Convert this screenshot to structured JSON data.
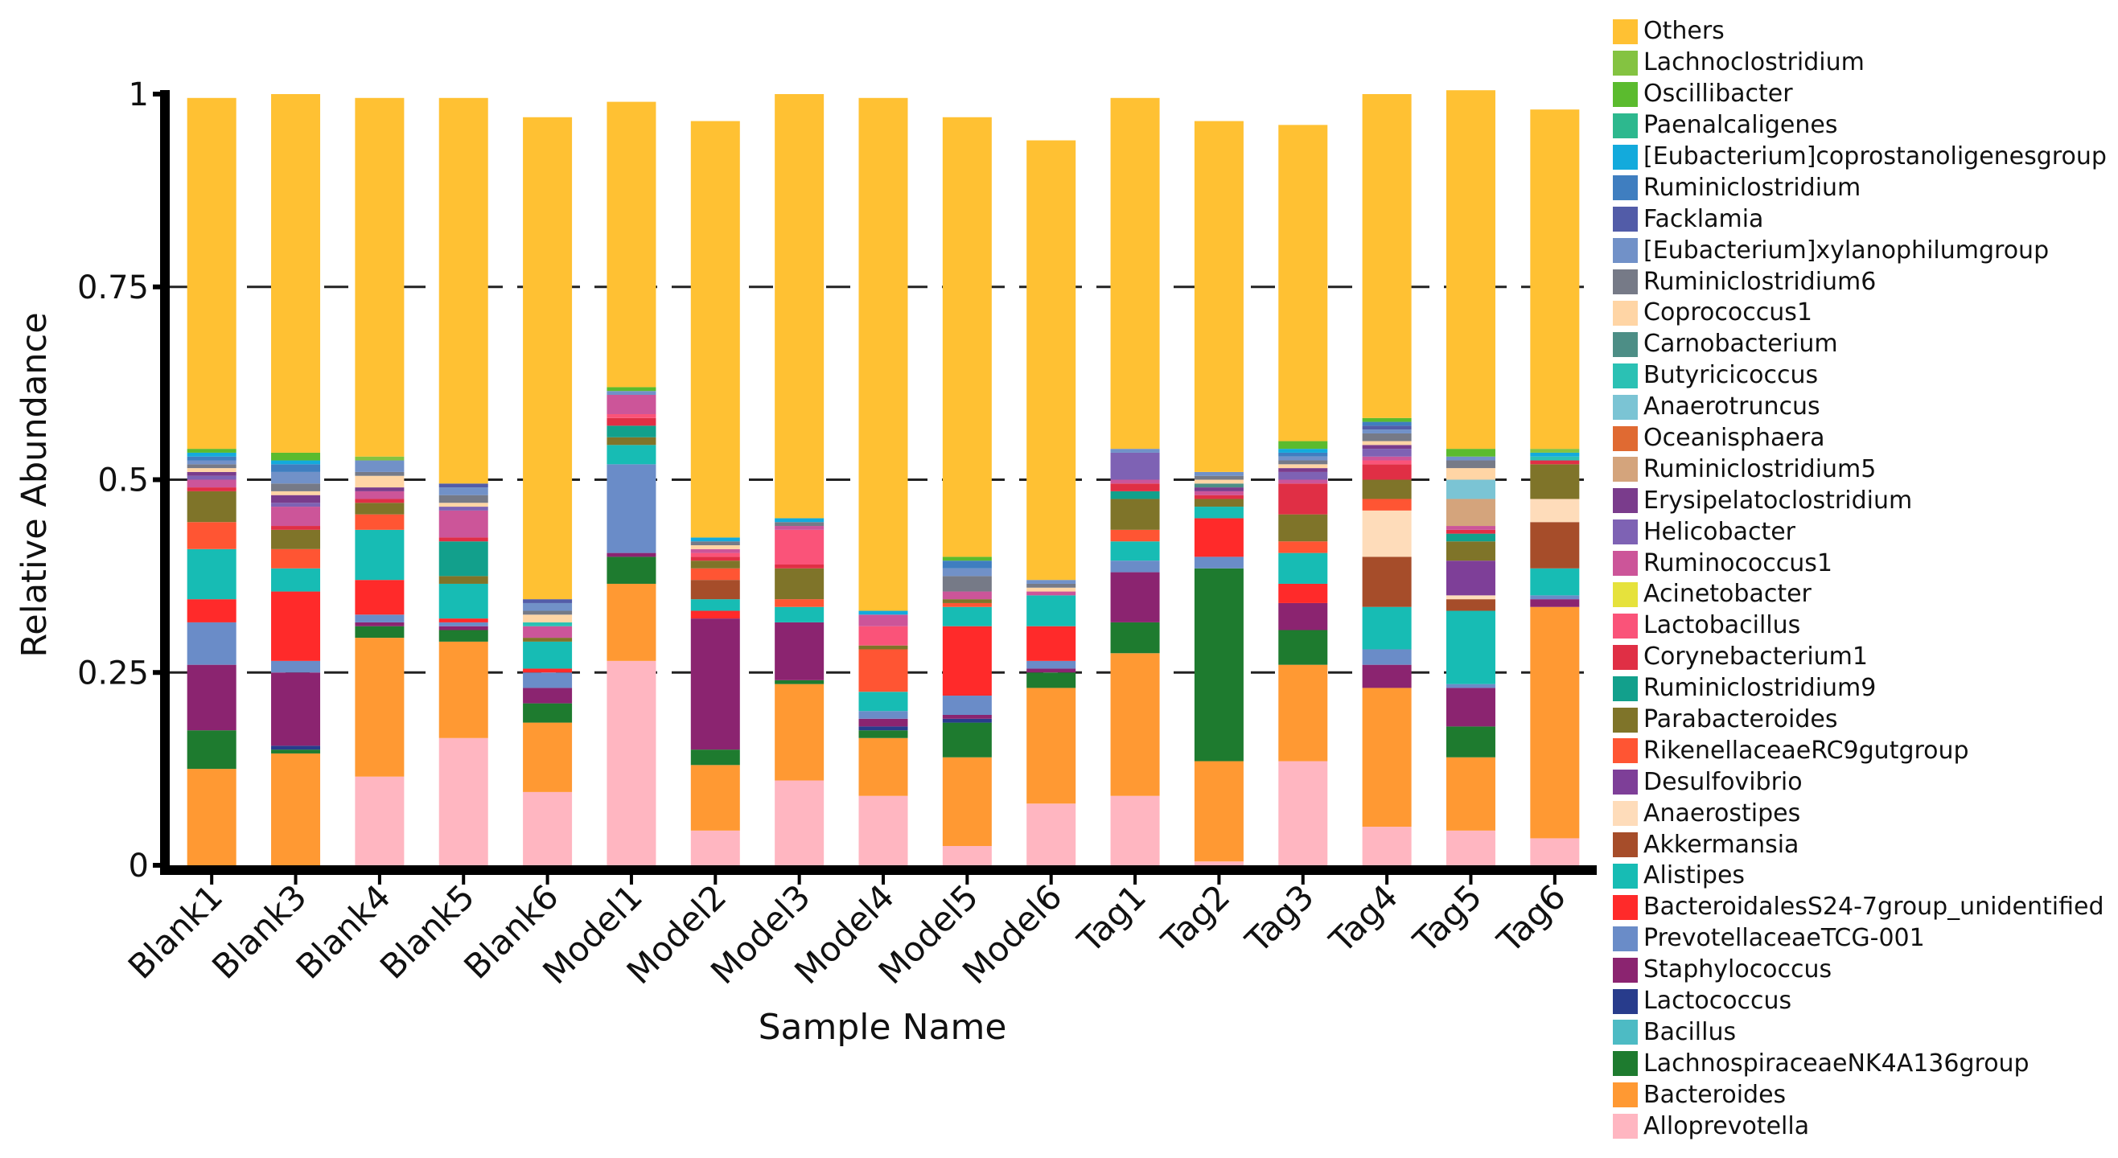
{
  "chart_data": {
    "type": "bar",
    "stacked": true,
    "title": "",
    "xlabel": "Sample Name",
    "ylabel": "Relative Abundance",
    "ylim": [
      0,
      1
    ],
    "yticks": [
      0,
      0.25,
      0.5,
      0.75,
      1
    ],
    "ytick_labels": [
      "0",
      "0.25",
      "0.5",
      "0.75",
      "1"
    ],
    "grid": "dashed horizontal at 0.25, 0.5, 0.75",
    "legend_position": "right",
    "categories": [
      "Blank1",
      "Blank3",
      "Blank4",
      "Blank5",
      "Blank6",
      "Model1",
      "Model2",
      "Model3",
      "Model4",
      "Model5",
      "Model6",
      "Tag1",
      "Tag2",
      "Tag3",
      "Tag4",
      "Tag5",
      "Tag6"
    ],
    "series": [
      {
        "name": "Alloprevotella",
        "color": "#FFB6C1",
        "values": [
          0,
          0,
          0.115,
          0.165,
          0.095,
          0.265,
          0.045,
          0.11,
          0.09,
          0.025,
          0.08,
          0.09,
          0.005,
          0.135,
          0.05,
          0.045,
          0.035
        ]
      },
      {
        "name": "Bacteroides",
        "color": "#FF9933",
        "values": [
          0.125,
          0.145,
          0.18,
          0.125,
          0.09,
          0.1,
          0.085,
          0.125,
          0.075,
          0.115,
          0.15,
          0.185,
          0.13,
          0.125,
          0.18,
          0.095,
          0.3
        ]
      },
      {
        "name": "LachnospiraceaeNK4A136group",
        "color": "#1E7B2F",
        "values": [
          0.05,
          0.005,
          0.015,
          0.015,
          0.025,
          0.035,
          0.02,
          0.005,
          0.01,
          0.045,
          0.02,
          0.04,
          0.25,
          0.045,
          0,
          0.04,
          0
        ]
      },
      {
        "name": "Bacillus",
        "color": "#4DBBC4",
        "values": [
          0,
          0,
          0,
          0,
          0,
          0,
          0,
          0,
          0,
          0,
          0,
          0,
          0,
          0,
          0,
          0,
          0
        ]
      },
      {
        "name": "Lactococcus",
        "color": "#283C8C",
        "values": [
          0,
          0.005,
          0,
          0,
          0,
          0,
          0,
          0,
          0.005,
          0.005,
          0,
          0,
          0,
          0,
          0,
          0,
          0
        ]
      },
      {
        "name": "Staphylococcus",
        "color": "#8B2470",
        "values": [
          0.085,
          0.095,
          0.005,
          0.005,
          0.02,
          0.005,
          0.17,
          0.075,
          0.01,
          0.005,
          0.005,
          0.065,
          0,
          0.035,
          0.03,
          0.05,
          0.01
        ]
      },
      {
        "name": "PrevotellaceaeTCG-001",
        "color": "#6A8CC8",
        "values": [
          0.055,
          0.015,
          0.01,
          0.005,
          0.02,
          0.115,
          0,
          0,
          0.01,
          0.025,
          0.01,
          0.015,
          0.015,
          0,
          0.02,
          0.005,
          0.005
        ]
      },
      {
        "name": "BacteroidalesS24-7group_unidentified",
        "color": "#FF2A2A",
        "values": [
          0.03,
          0.09,
          0.045,
          0.005,
          0.005,
          0,
          0.01,
          0,
          0,
          0.09,
          0.045,
          0,
          0.05,
          0.025,
          0,
          0,
          0
        ]
      },
      {
        "name": "Alistipes",
        "color": "#17BCB4",
        "values": [
          0.065,
          0.03,
          0.065,
          0.045,
          0.035,
          0.025,
          0.015,
          0.02,
          0.025,
          0.025,
          0.04,
          0.025,
          0.015,
          0.04,
          0.055,
          0.095,
          0.035
        ]
      },
      {
        "name": "Akkermansia",
        "color": "#A64D2A",
        "values": [
          0,
          0,
          0,
          0,
          0,
          0,
          0.025,
          0,
          0,
          0,
          0,
          0,
          0,
          0,
          0.065,
          0.015,
          0.06
        ]
      },
      {
        "name": "Anaerostipes",
        "color": "#FEDCBA",
        "values": [
          0,
          0,
          0,
          0,
          0,
          0,
          0,
          0,
          0,
          0,
          0,
          0,
          0,
          0,
          0.06,
          0.005,
          0.03
        ]
      },
      {
        "name": "Desulfovibrio",
        "color": "#7E3F98",
        "values": [
          0,
          0,
          0,
          0,
          0,
          0,
          0,
          0,
          0,
          0,
          0,
          0,
          0,
          0,
          0,
          0.045,
          0
        ]
      },
      {
        "name": "RikenellaceaeRC9gutgroup",
        "color": "#FF5533",
        "values": [
          0.035,
          0.025,
          0.02,
          0,
          0,
          0,
          0.015,
          0.01,
          0.055,
          0.005,
          0,
          0.015,
          0,
          0.015,
          0.015,
          0,
          0
        ]
      },
      {
        "name": "Parabacteroides",
        "color": "#7F7429",
        "values": [
          0.04,
          0.025,
          0.015,
          0.01,
          0.005,
          0.01,
          0.01,
          0.04,
          0.005,
          0.005,
          0,
          0.04,
          0.01,
          0.035,
          0.025,
          0.025,
          0.045
        ]
      },
      {
        "name": "Ruminiclostridium9",
        "color": "#12A08C",
        "values": [
          0,
          0,
          0,
          0.045,
          0,
          0.015,
          0,
          0,
          0,
          0,
          0,
          0.01,
          0,
          0,
          0,
          0.01,
          0
        ]
      },
      {
        "name": "Corynebacterium1",
        "color": "#E02F45",
        "values": [
          0.005,
          0.005,
          0.005,
          0.005,
          0,
          0.01,
          0.005,
          0.005,
          0,
          0,
          0,
          0.01,
          0.005,
          0.04,
          0.02,
          0.005,
          0.005
        ]
      },
      {
        "name": "Lactobacillus",
        "color": "#FA5379",
        "values": [
          0,
          0,
          0,
          0,
          0,
          0.005,
          0.005,
          0.045,
          0.025,
          0,
          0,
          0,
          0,
          0,
          0.005,
          0,
          0
        ]
      },
      {
        "name": "Acinetobacter",
        "color": "#E6E23C",
        "values": [
          0,
          0,
          0,
          0,
          0,
          0,
          0,
          0,
          0,
          0,
          0,
          0,
          0,
          0,
          0,
          0,
          0
        ]
      },
      {
        "name": "Ruminococcus1",
        "color": "#CC5599",
        "values": [
          0.01,
          0.025,
          0.01,
          0.035,
          0.015,
          0.025,
          0.005,
          0.005,
          0.015,
          0.01,
          0.005,
          0.005,
          0.005,
          0.005,
          0.005,
          0.005,
          0
        ]
      },
      {
        "name": "Helicobacter",
        "color": "#7E62B4",
        "values": [
          0.005,
          0.005,
          0,
          0.005,
          0,
          0,
          0,
          0,
          0,
          0,
          0,
          0.035,
          0,
          0.01,
          0.01,
          0,
          0
        ]
      },
      {
        "name": "Erysipelatoclostridium",
        "color": "#7A3C8C",
        "values": [
          0.005,
          0.01,
          0.005,
          0,
          0,
          0,
          0,
          0,
          0,
          0,
          0,
          0,
          0.005,
          0.005,
          0.005,
          0,
          0
        ]
      },
      {
        "name": "Ruminiclostridium5",
        "color": "#D4A47C",
        "values": [
          0,
          0,
          0,
          0,
          0,
          0,
          0,
          0,
          0,
          0,
          0,
          0,
          0,
          0,
          0,
          0.035,
          0
        ]
      },
      {
        "name": "Oceanisphaera",
        "color": "#E06A32",
        "values": [
          0,
          0,
          0,
          0,
          0,
          0,
          0,
          0,
          0,
          0,
          0,
          0,
          0,
          0,
          0,
          0,
          0
        ]
      },
      {
        "name": "Anaerotruncus",
        "color": "#7BC4D4",
        "values": [
          0,
          0,
          0,
          0,
          0,
          0,
          0,
          0,
          0,
          0,
          0,
          0,
          0,
          0,
          0,
          0.025,
          0
        ]
      },
      {
        "name": "Butyricicoccus",
        "color": "#2BC1B4",
        "values": [
          0,
          0,
          0,
          0,
          0.005,
          0,
          0,
          0,
          0,
          0,
          0,
          0,
          0,
          0,
          0,
          0,
          0.005
        ]
      },
      {
        "name": "Carnobacterium",
        "color": "#4D8E86",
        "values": [
          0,
          0,
          0,
          0,
          0,
          0,
          0,
          0,
          0,
          0,
          0,
          0,
          0.005,
          0,
          0,
          0,
          0
        ]
      },
      {
        "name": "Coprococcus1",
        "color": "#FFD5A5",
        "values": [
          0.005,
          0.005,
          0.015,
          0.005,
          0.01,
          0,
          0.005,
          0,
          0,
          0,
          0.005,
          0,
          0.005,
          0.005,
          0.005,
          0.015,
          0
        ]
      },
      {
        "name": "Ruminiclostridium6",
        "color": "#767A87",
        "values": [
          0.005,
          0.01,
          0.005,
          0.01,
          0.005,
          0,
          0.005,
          0.005,
          0,
          0.02,
          0.005,
          0,
          0.005,
          0.005,
          0.01,
          0.01,
          0
        ]
      },
      {
        "name": "[Eubacterium]xylanophilumgroup",
        "color": "#7191C8",
        "values": [
          0.005,
          0.015,
          0.015,
          0.01,
          0.01,
          0.005,
          0,
          0,
          0,
          0.01,
          0.005,
          0.005,
          0.005,
          0.005,
          0.005,
          0.005,
          0
        ]
      },
      {
        "name": "Facklamia",
        "color": "#525CA8",
        "values": [
          0,
          0,
          0,
          0.005,
          0.005,
          0,
          0,
          0,
          0,
          0,
          0,
          0,
          0,
          0,
          0.005,
          0,
          0
        ]
      },
      {
        "name": "Ruminiclostridium",
        "color": "#3F7EC0",
        "values": [
          0.005,
          0.01,
          0,
          0,
          0,
          0,
          0,
          0,
          0,
          0.01,
          0,
          0,
          0,
          0.005,
          0.005,
          0,
          0
        ]
      },
      {
        "name": "[Eubacterium]coprostanoligenesgroup",
        "color": "#13AADC",
        "values": [
          0.005,
          0.005,
          0,
          0,
          0,
          0,
          0.005,
          0.005,
          0.005,
          0,
          0,
          0,
          0,
          0.005,
          0,
          0,
          0.005
        ]
      },
      {
        "name": "Paenalcaligenes",
        "color": "#2DB88E",
        "values": [
          0,
          0,
          0,
          0,
          0,
          0,
          0,
          0,
          0,
          0,
          0,
          0,
          0,
          0,
          0,
          0,
          0
        ]
      },
      {
        "name": "Oscillibacter",
        "color": "#5BBB2E",
        "values": [
          0.005,
          0.01,
          0,
          0,
          0,
          0.005,
          0,
          0,
          0,
          0.005,
          0,
          0,
          0,
          0.01,
          0.005,
          0.01,
          0
        ]
      },
      {
        "name": "Lachnoclostridium",
        "color": "#84C341",
        "values": [
          0,
          0,
          0.005,
          0,
          0,
          0,
          0,
          0,
          0,
          0,
          0,
          0,
          0,
          0,
          0,
          0,
          0.005
        ]
      },
      {
        "name": "Others",
        "color": "#FFC133",
        "values": [
          0.455,
          0.465,
          0.465,
          0.5,
          0.625,
          0.37,
          0.54,
          0.55,
          0.665,
          0.57,
          0.57,
          0.455,
          0.455,
          0.41,
          0.42,
          0.465,
          0.44
        ]
      }
    ]
  }
}
